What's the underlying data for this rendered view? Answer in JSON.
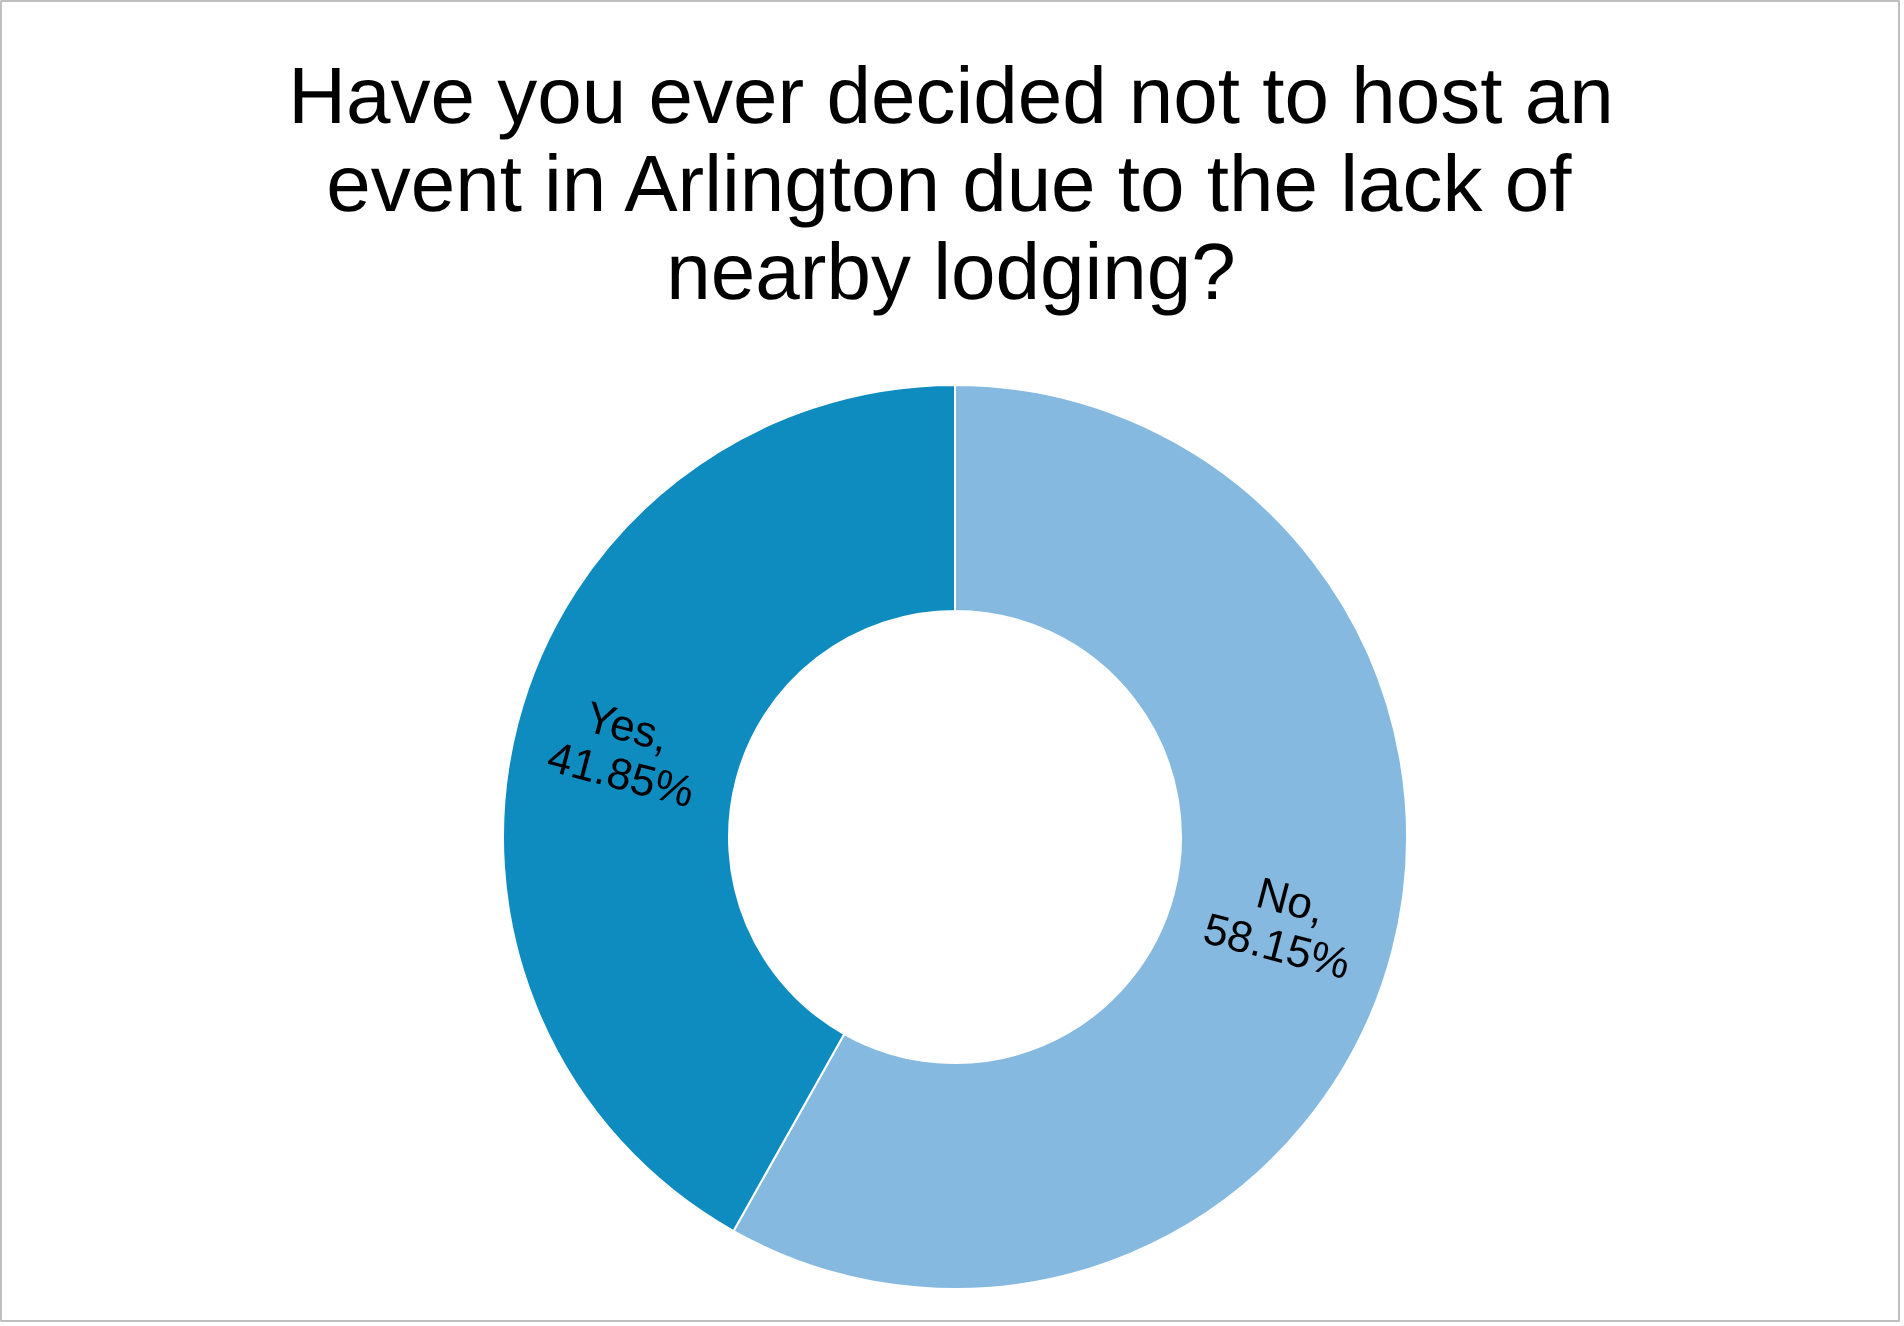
{
  "chart_data": {
    "type": "donut",
    "title": "Have you ever decided not to host an event in Arlington due to the lack of nearby lodging?",
    "categories": [
      "No",
      "Yes"
    ],
    "values": [
      58.15,
      41.85
    ],
    "colors": [
      "#85b9e0",
      "#0e8bbf"
    ],
    "value_labels": [
      ", 58.15%",
      ", 41.85%"
    ],
    "legend": false
  }
}
